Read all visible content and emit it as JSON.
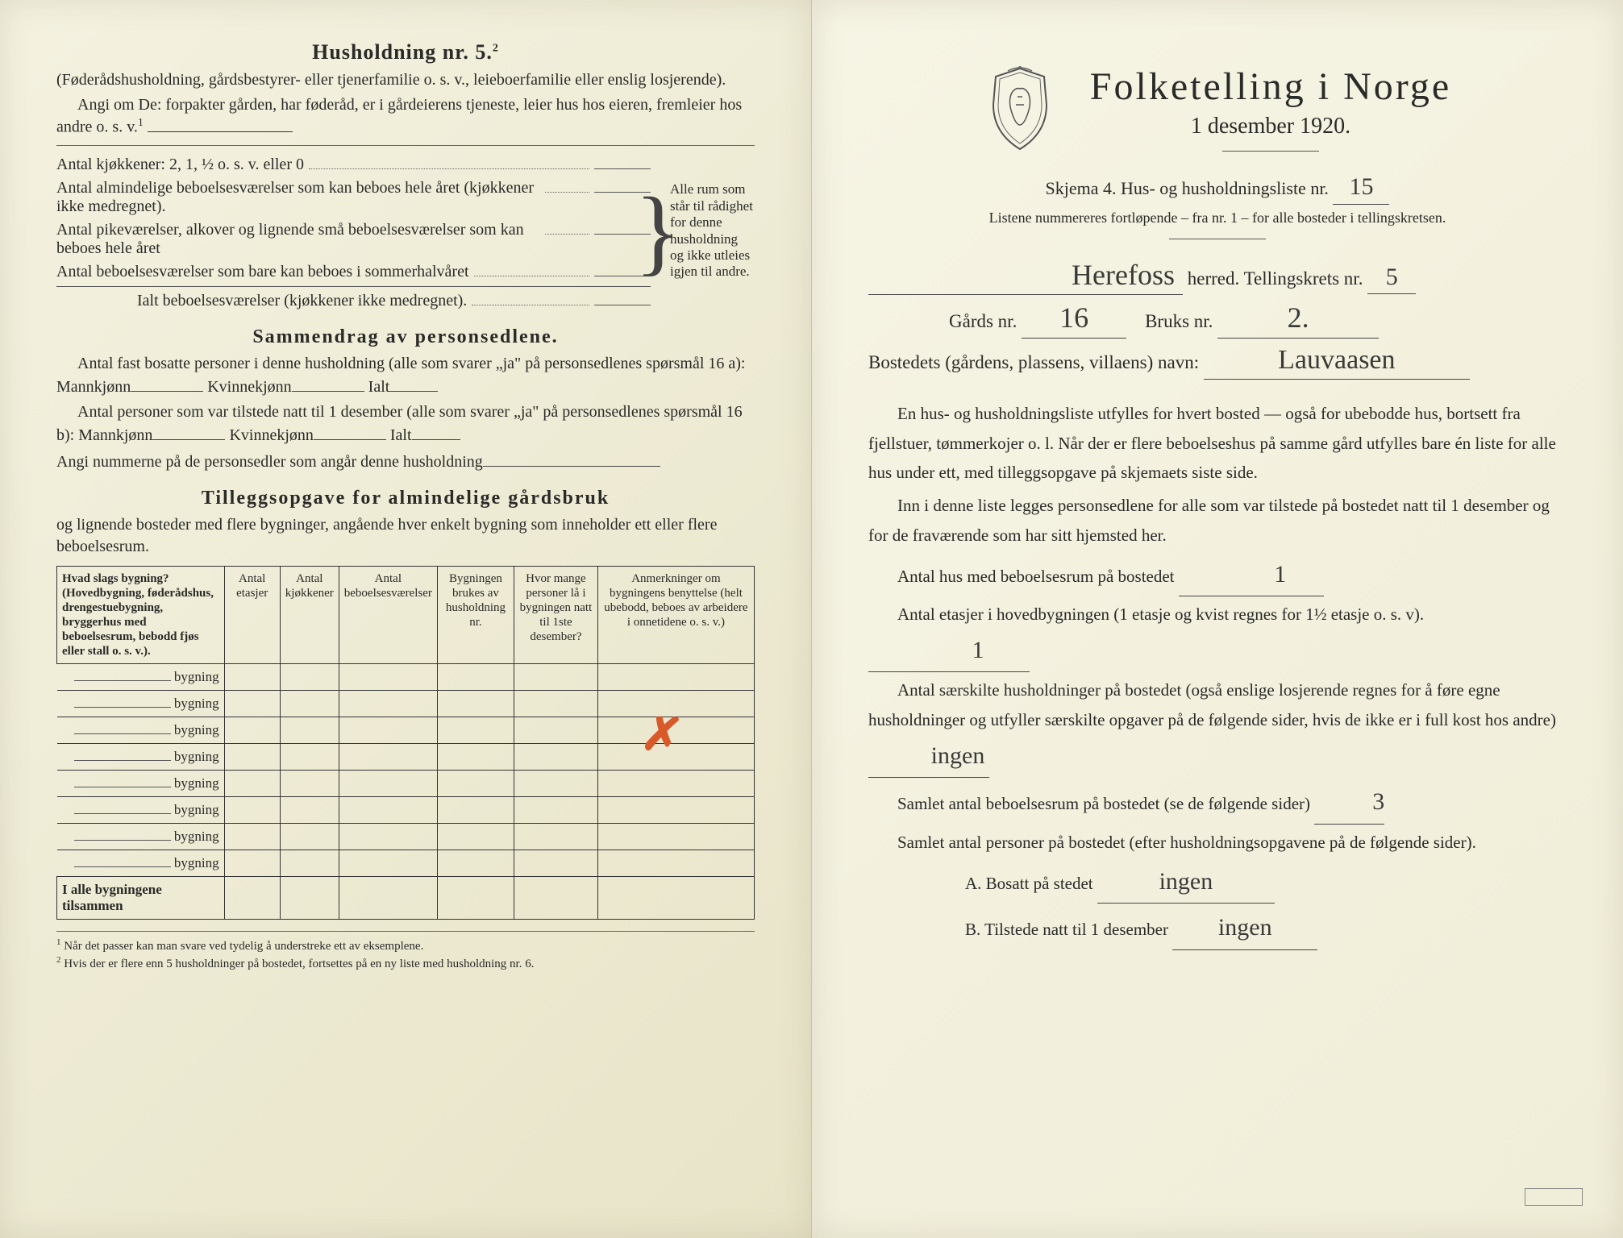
{
  "left": {
    "heading": "Husholdning nr. 5.",
    "headingSup": "2",
    "intro1": "(Føderådshusholdning, gårdsbestyrer- eller tjenerfamilie o. s. v., leieboerfamilie eller enslig losjerende).",
    "intro2": "Angi om De:  forpakter gården, har føderåd, er i gårdeierens tjeneste, leier hus hos eieren, fremleier hos andre o. s. v.",
    "intro2Sup": "1",
    "rows": [
      "Antal kjøkkener: 2, 1, ½ o. s. v. eller 0",
      "Antal almindelige beboelsesværelser som kan beboes hele året (kjøkkener ikke medregnet).",
      "Antal pikeværelser, alkover og lignende små beboelsesværelser som kan beboes hele året",
      "Antal beboelsesværelser som bare kan beboes i sommerhalvåret"
    ],
    "ialt": "Ialt beboelsesværelser  (kjøkkener ikke medregnet).",
    "braceNote": "Alle rum som står til rådighet for denne husholdning og ikke utleies igjen til andre.",
    "section2": "Sammendrag av personsedlene.",
    "s2p1a": "Antal fast bosatte personer i denne husholdning (alle som svarer „ja\" på personsedlenes spørsmål 16 a): Mannkjønn",
    "s2p1b": "Kvinnekjønn",
    "s2p1c": "Ialt",
    "s2p2a": "Antal personer som var tilstede natt til 1 desember (alle som svarer „ja\" på personsedlenes spørsmål 16 b): Mannkjønn",
    "s2p2b": "Kvinnekjønn",
    "s2p2c": "Ialt",
    "s2p3": "Angi nummerne på de personsedler som angår denne husholdning",
    "section3": "Tilleggsopgave for almindelige gårdsbruk",
    "s3sub": "og lignende bosteder med flere bygninger, angående hver enkelt bygning som inneholder ett eller flere beboelsesrum.",
    "tableHeaders": [
      "Hvad slags bygning?\n(Hovedbygning, føderådshus, drengestuebygning, bryggerhus med beboelsesrum, bebodd fjøs eller stall o. s. v.).",
      "Antal etasjer",
      "Antal kjøkkener",
      "Antal beboelsesværelser",
      "Bygningen brukes av husholdning nr.",
      "Hvor mange personer lå i bygningen natt til 1ste desember?",
      "Anmerkninger om bygningens benyttelse (helt ubebodd, beboes av arbeidere i onnetidene o. s. v.)"
    ],
    "rowLabel": "bygning",
    "rowCount": 8,
    "totalRow": "I alle bygningene tilsammen",
    "footnote1": "Når det passer kan man svare ved tydelig å understreke ett av eksemplene.",
    "footnote2": "Hvis der er flere enn 5 husholdninger på bostedet, fortsettes på en ny liste med husholdning nr. 6."
  },
  "right": {
    "title": "Folketelling i Norge",
    "date": "1 desember 1920.",
    "skjema": "Skjema 4.   Hus- og husholdningsliste nr.",
    "skjemaNr": "15",
    "listSub": "Listene nummereres fortløpende – fra nr. 1 – for alle bosteder i tellingskretsen.",
    "herred": "Herefoss",
    "herredLabel": "herred.   Tellingskrets nr.",
    "kretsNr": "5",
    "gards": "Gårds nr.",
    "gardsNr": "16",
    "bruks": "Bruks nr.",
    "bruksNr": "2.",
    "bostedLabel": "Bostedets (gårdens, plassens, villaens) navn:",
    "bostedNavn": "Lauvaasen",
    "para1": "En hus- og husholdningsliste utfylles for hvert bosted — også for ubebodde hus, bortsett fra fjellstuer, tømmerkojer o. l.  Når der er flere beboelseshus på samme gård utfylles bare én liste for alle hus under ett, med tilleggsopgave på skjemaets siste side.",
    "para2": "Inn i denne liste legges personsedlene for alle som var tilstede på bostedet natt til 1 desember og for de fraværende som har sitt hjemsted her.",
    "l1": "Antal hus med beboelsesrum på bostedet",
    "l1v": "1",
    "l2": "Antal etasjer i hovedbygningen (1 etasje og kvist regnes for 1½ etasje o. s. v).",
    "l2v": "1",
    "l3": "Antal særskilte husholdninger på bostedet (også enslige losjerende regnes for å føre egne husholdninger og utfyller særskilte opgaver på de følgende sider, hvis de ikke er i full kost hos andre)",
    "l3v": "ingen",
    "l4": "Samlet antal beboelsesrum på bostedet (se de følgende sider)",
    "l4v": "3",
    "l5": "Samlet antal personer på bostedet (efter husholdningsopgavene på de følgende sider).",
    "lA": "A.  Bosatt på stedet",
    "lAv": "ingen",
    "lB": "B.  Tilstede natt til 1 desember",
    "lBv": "ingen"
  },
  "colors": {
    "paper": "#f4f2e0",
    "ink": "#2a2a28",
    "redPencil": "#d85a2a",
    "handwriting": "#3a3a38"
  }
}
